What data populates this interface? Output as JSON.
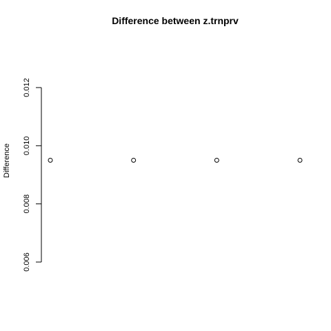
{
  "chart_data": {
    "type": "scatter",
    "title": "Difference between z.trnprv",
    "xlabel": "",
    "ylabel": "Difference",
    "x": [
      1,
      2,
      3,
      4
    ],
    "y": [
      0.0095,
      0.0095,
      0.0095,
      0.0095
    ],
    "ylim": [
      0.006,
      0.012
    ],
    "yticks": [
      "0.006",
      "0.008",
      "0.010",
      "0.012"
    ],
    "marker": "open-circle",
    "grid": false,
    "legend": "none"
  }
}
